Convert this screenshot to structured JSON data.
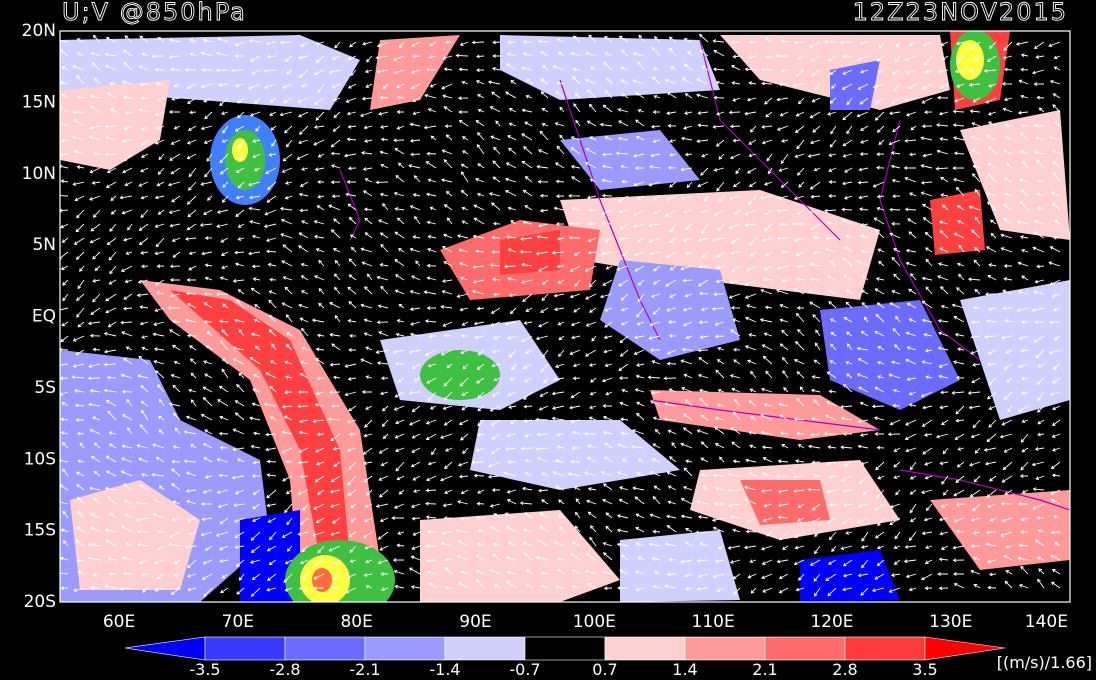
{
  "title": "U;V @850hPa",
  "time": "12Z23NOV2015",
  "lat_labels": [
    "20N",
    "15N",
    "10N",
    "5N",
    "EQ",
    "5S",
    "10S",
    "15S",
    "20S"
  ],
  "lon_labels": [
    "60E",
    "70E",
    "80E",
    "90E",
    "100E",
    "110E",
    "120E",
    "130E",
    "140E"
  ],
  "colorbar": {
    "labels": [
      "-3.5",
      "-2.8",
      "-2.1",
      "-1.4",
      "-0.7",
      "0.7",
      "1.4",
      "2.1",
      "2.8",
      "3.5"
    ],
    "unit": "[(m/s)/1.66]"
  }
}
